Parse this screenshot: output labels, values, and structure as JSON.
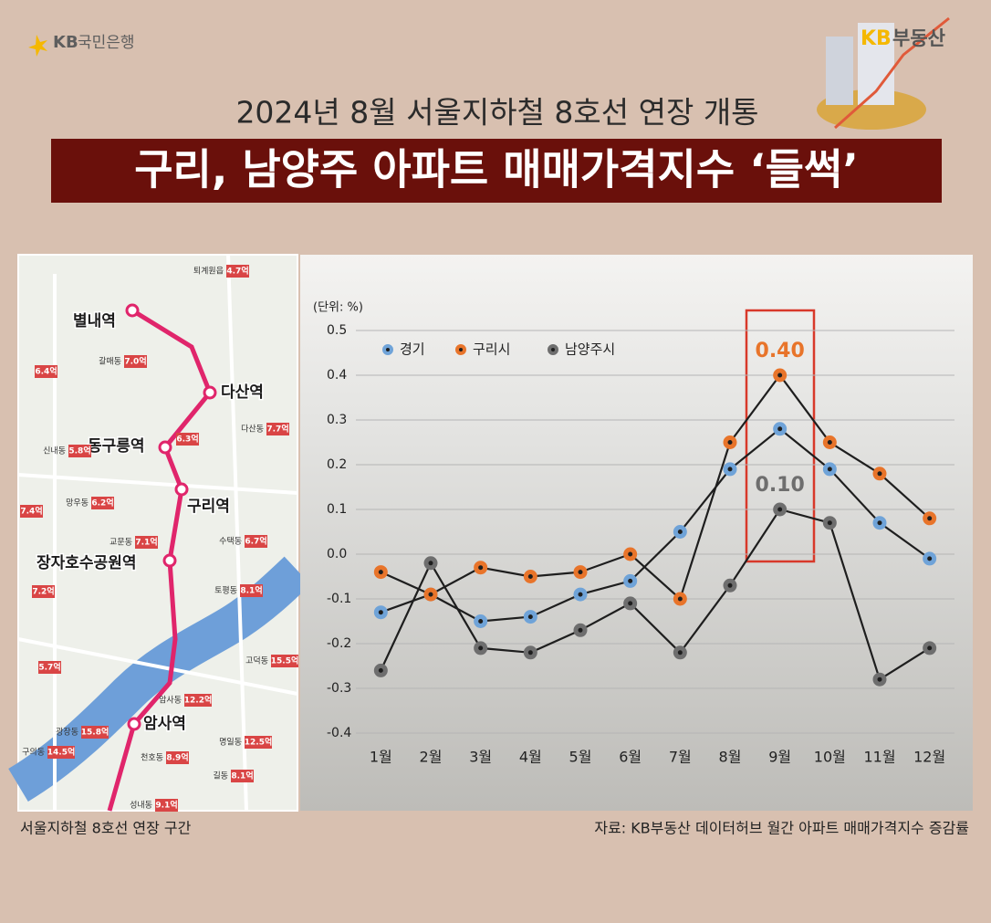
{
  "header": {
    "logo_left": {
      "kb": "KB",
      "name": "국민은행"
    },
    "logo_right": {
      "kb": "KB",
      "name": "부동산"
    },
    "subtitle": "2024년 8월 서울지하철 8호선 연장 개통",
    "title": "구리, 남양주 아파트 매매가격지수 ‘들썩’"
  },
  "map": {
    "stations": [
      "별내역",
      "다산역",
      "동구릉역",
      "구리역",
      "장자호수공원역",
      "암사역"
    ],
    "tags": [
      {
        "area": "퇴계원읍",
        "price": "4.7억"
      },
      {
        "area": "갈매동",
        "price": "7.0억"
      },
      {
        "price": "6.4억"
      },
      {
        "area": "다산동",
        "price": "7.7억"
      },
      {
        "price": "6.3억"
      },
      {
        "area": "신내동",
        "price": "5.8억"
      },
      {
        "area": "망우동",
        "price": "6.2억"
      },
      {
        "price": "7.4억"
      },
      {
        "area": "교문동",
        "price": "7.1억"
      },
      {
        "area": "수택동",
        "price": "6.7억"
      },
      {
        "price": "7.2억"
      },
      {
        "area": "토평동",
        "price": "8.1억"
      },
      {
        "area": "고덕동",
        "price": "15.5억"
      },
      {
        "price": "5.7억"
      },
      {
        "area": "암사동",
        "price": "12.2억"
      },
      {
        "area": "광장동",
        "price": "15.8억"
      },
      {
        "area": "명일동",
        "price": "12.5억"
      },
      {
        "area": "구의동",
        "price": "14.5억"
      },
      {
        "area": "천호동",
        "price": "8.9억"
      },
      {
        "area": "길동",
        "price": "8.1억"
      },
      {
        "area": "성내동",
        "price": "9.1억"
      }
    ],
    "caption": "서울지하철 8호선 연장 구간"
  },
  "chart_data": {
    "type": "line",
    "unit": "(단위: %)",
    "categories": [
      "1월",
      "2월",
      "3월",
      "4월",
      "5월",
      "6월",
      "7월",
      "8월",
      "9월",
      "10월",
      "11월",
      "12월"
    ],
    "series": [
      {
        "name": "경기",
        "color": "#6fa3d8",
        "values": [
          -0.13,
          -0.09,
          -0.15,
          -0.14,
          -0.09,
          -0.06,
          0.05,
          0.19,
          0.28,
          0.19,
          0.07,
          -0.01
        ]
      },
      {
        "name": "구리시",
        "color": "#e8742a",
        "values": [
          -0.04,
          -0.09,
          -0.03,
          -0.05,
          -0.04,
          0.0,
          -0.1,
          0.25,
          0.4,
          0.25,
          0.18,
          0.08
        ],
        "value_labels": [
          null,
          null,
          null,
          null,
          null,
          null,
          null,
          null,
          "0.40",
          null,
          null,
          null
        ]
      },
      {
        "name": "남양주시",
        "color": "#6e6e6e",
        "values": [
          -0.26,
          -0.02,
          -0.21,
          -0.22,
          -0.17,
          -0.11,
          -0.22,
          -0.07,
          0.1,
          0.07,
          -0.28,
          -0.21
        ],
        "value_labels": [
          null,
          null,
          null,
          null,
          null,
          null,
          null,
          null,
          "0.10",
          null,
          null,
          null
        ]
      }
    ],
    "ylim": [
      -0.4,
      0.5
    ],
    "yticks": [
      0.5,
      0.4,
      0.3,
      0.2,
      0.1,
      {
        "value": 0,
        "label": "0.0"
      },
      -0.1,
      -0.2,
      -0.3,
      -0.4
    ],
    "grid": true,
    "legend": "top-left",
    "source": "자료: KB부동산 데이터허브 월간 아파트 매매가격지수 증감률"
  }
}
